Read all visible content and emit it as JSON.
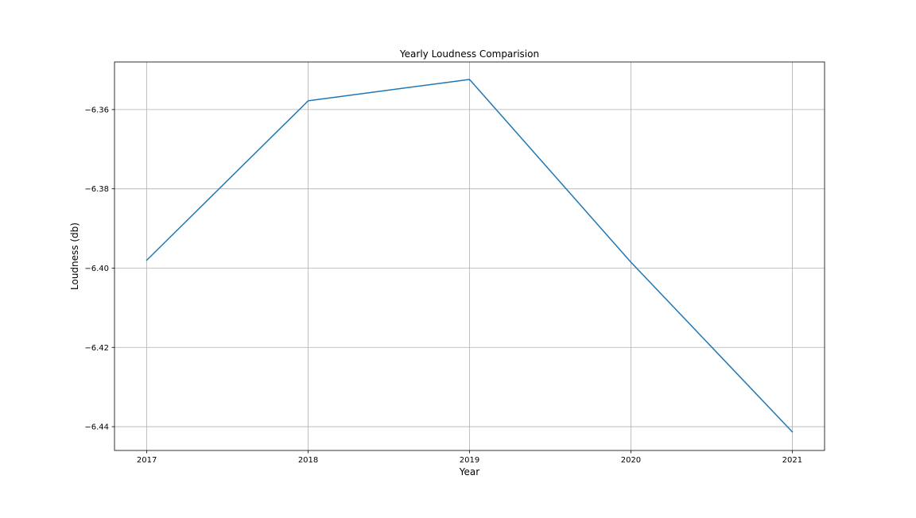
{
  "chart_data": {
    "type": "line",
    "title": "Yearly Loudness Comparision",
    "xlabel": "Year",
    "ylabel": "Loudness (db)",
    "x": [
      2017,
      2018,
      2019,
      2020,
      2021
    ],
    "x_tick_labels": [
      "2017",
      "2018",
      "2019",
      "2020",
      "2021"
    ],
    "y_ticks": [
      -6.36,
      -6.38,
      -6.4,
      -6.42,
      -6.44
    ],
    "y_tick_labels": [
      "−6.36",
      "−6.38",
      "−6.40",
      "−6.42",
      "−6.44"
    ],
    "xlim": [
      2016.8,
      2021.2
    ],
    "ylim": [
      -6.446,
      -6.348
    ],
    "grid": true,
    "series": [
      {
        "name": "Loudness",
        "color": "#1f77b4",
        "values": [
          -6.398,
          -6.3578,
          -6.3524,
          -6.3985,
          -6.4413
        ]
      }
    ]
  }
}
